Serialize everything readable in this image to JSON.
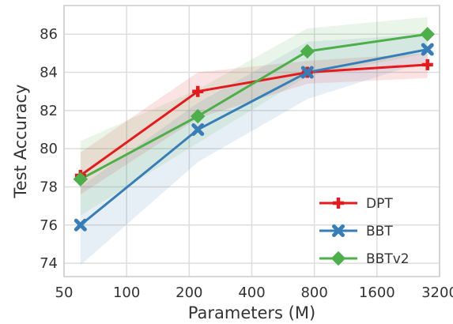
{
  "chart_data": {
    "type": "line",
    "xlabel": "Parameters (M)",
    "ylabel": "Test Accuracy",
    "x_scale": "log2",
    "xlim": [
      50,
      3200
    ],
    "ylim": [
      73.3,
      87.5
    ],
    "x_ticks": [
      50,
      100,
      200,
      400,
      800,
      1600,
      3200
    ],
    "x_tick_labels": [
      "50",
      "100",
      "200",
      "400",
      "800",
      "1600",
      "3200"
    ],
    "y_ticks": [
      74,
      76,
      78,
      80,
      82,
      84,
      86
    ],
    "y_tick_labels": [
      "74",
      "76",
      "78",
      "80",
      "82",
      "84",
      "86"
    ],
    "grid": true,
    "legend_position": "lower-right",
    "series": [
      {
        "name": "DPT",
        "color": "#e41a1c",
        "marker": "plus",
        "x": [
          60,
          220,
          740,
          2800
        ],
        "y": [
          78.6,
          83.0,
          84.0,
          84.4
        ],
        "lower": [
          77.6,
          81.6,
          83.4,
          83.7
        ],
        "upper": [
          79.8,
          84.0,
          84.6,
          85.0
        ]
      },
      {
        "name": "BBT",
        "color": "#377eb8",
        "marker": "x",
        "x": [
          60,
          220,
          740,
          2800
        ],
        "y": [
          76.0,
          81.0,
          84.0,
          85.2
        ],
        "lower": [
          73.9,
          79.3,
          82.6,
          84.6
        ],
        "upper": [
          78.0,
          82.4,
          85.6,
          86.0
        ]
      },
      {
        "name": "BBTv2",
        "color": "#4daf4a",
        "marker": "diamond",
        "x": [
          60,
          220,
          740,
          2800
        ],
        "y": [
          78.4,
          81.7,
          85.1,
          86.0
        ],
        "lower": [
          76.5,
          80.3,
          83.8,
          85.0
        ],
        "upper": [
          80.4,
          83.1,
          86.3,
          86.9
        ]
      }
    ]
  }
}
